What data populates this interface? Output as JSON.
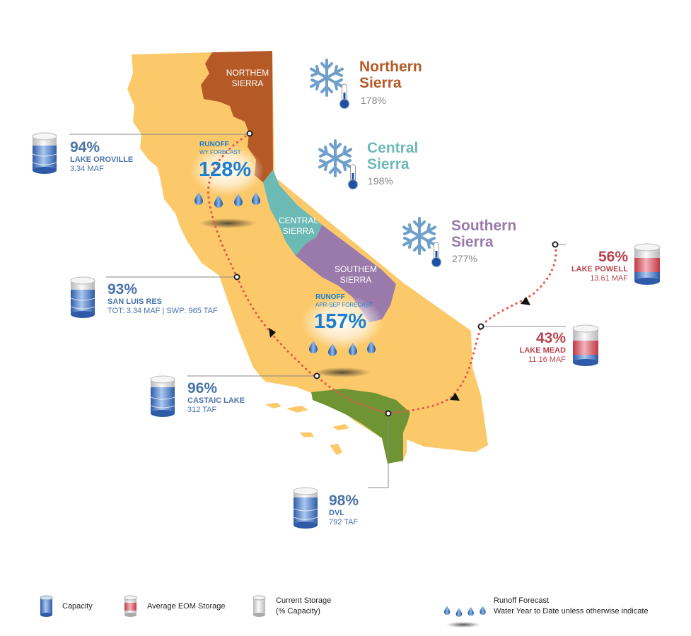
{
  "regions": {
    "northern": {
      "title_line1": "Northern",
      "title_line2": "Sierra",
      "pct": "178%",
      "map_line1": "NORTHEM",
      "map_line2": "SIERRA",
      "color": "#b55a26"
    },
    "central": {
      "title_line1": "Central",
      "title_line2": "Sierra",
      "pct": "198%",
      "map_line1": "CENTRAL",
      "map_line2": "SIERRA",
      "color": "#6bbab5"
    },
    "southern": {
      "title_line1": "Southern",
      "title_line2": "Sierra",
      "pct": "277%",
      "map_line1": "SOUTHEM",
      "map_line2": "SIERRA",
      "color": "#9a7aaa"
    }
  },
  "runoff": {
    "north": {
      "label": "RUNOFF",
      "sublabel": "WY FORECAST",
      "value": "128%"
    },
    "south": {
      "label": "RUNOFF",
      "sublabel": "APR-SEP FORECAST",
      "value": "157%"
    }
  },
  "reservoirs": {
    "oroville": {
      "pct": "94%",
      "name": "LAKE OROVILLE",
      "detail": "3.34 MAF"
    },
    "sanluis": {
      "pct": "93%",
      "name": "SAN LUIS RES",
      "detail": "TOT: 3.34 MAF | SWP: 965 TAF"
    },
    "castaic": {
      "pct": "96%",
      "name": "CASTAIC LAKE",
      "detail": "312 TAF"
    },
    "dvl": {
      "pct": "98%",
      "name": "DVL",
      "detail": "792 TAF"
    },
    "powell": {
      "pct": "56%",
      "name": "LAKE POWELL",
      "detail": "13.61 MAF"
    },
    "mead": {
      "pct": "43%",
      "name": "LAKE MEAD",
      "detail": "11.16 MAF"
    }
  },
  "legend": {
    "capacity": "Capacity",
    "avg_eom": "Average EOM Storage",
    "current_line1": "Current Storage",
    "current_line2": "(% Capacity)",
    "runoff_line1": "Runoff Forecast",
    "runoff_line2": "Water Year to Date unless otherwise indicate"
  },
  "colors": {
    "state": "#fbc96a",
    "socal": "#6f9434",
    "route": "#e8574a",
    "storage_blue": "#4a73a8",
    "storage_red": "#b8434f"
  }
}
